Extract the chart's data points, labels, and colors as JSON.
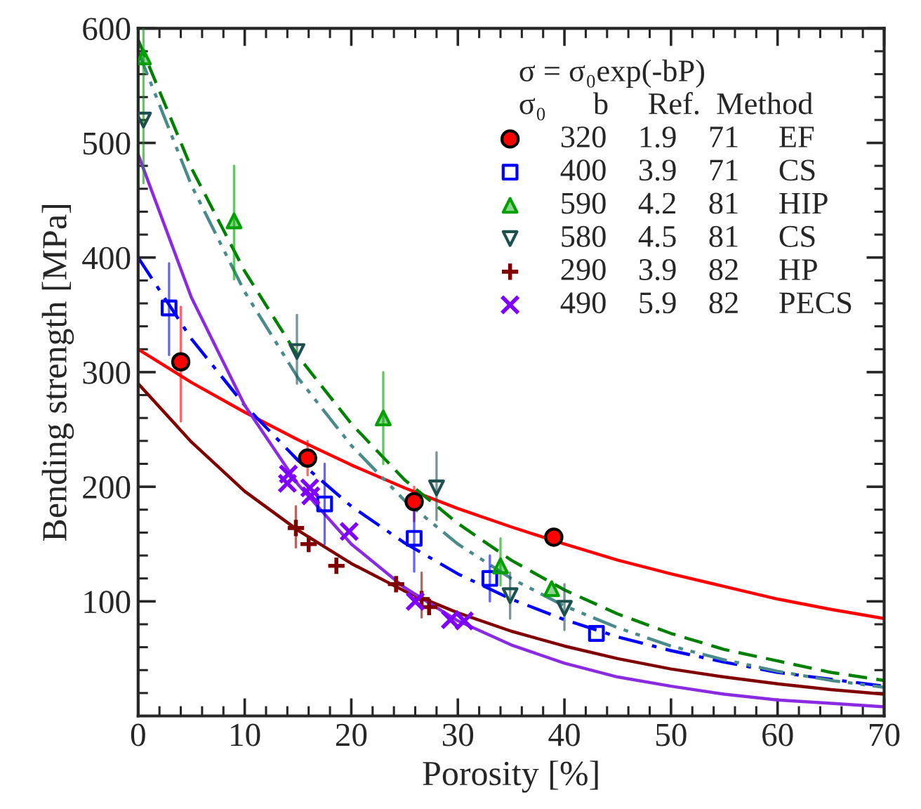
{
  "chart_data": {
    "type": "scatter",
    "xlabel": "Porosity [%]",
    "ylabel": "Bending strength [MPa]",
    "xlim": [
      0,
      70
    ],
    "ylim": [
      0,
      600
    ],
    "xticks": [
      0,
      10,
      20,
      30,
      40,
      50,
      60,
      70
    ],
    "yticks": [
      100,
      200,
      300,
      400,
      500,
      600
    ],
    "grid": false,
    "legend": "top right",
    "legend_title": "σ = σ₀exp(-bP)\nσ₀      b     Ref.  Method",
    "series": [
      {
        "name": "320    1.9    71     EF",
        "marker": "circle",
        "color": "#ff0000",
        "x": [
          4,
          15.9,
          25.9,
          39
        ],
        "values": [
          309,
          225,
          187,
          156
        ],
        "errors": [
          [
            257,
            357
          ],
          [
            210,
            240
          ],
          [
            170,
            200
          ],
          null
        ]
      },
      {
        "name": "400    3.9    71     CS",
        "marker": "square",
        "color": "#0000ff",
        "x": [
          2.9,
          17.5,
          25.9,
          33,
          43
        ],
        "values": [
          356,
          185,
          155,
          120,
          72
        ],
        "errors": [
          [
            315,
            395
          ],
          [
            150,
            220
          ],
          [
            126,
            183
          ],
          [
            100,
            140
          ],
          null
        ]
      },
      {
        "name": "590    4.2    81     HIP",
        "marker": "triangle",
        "color": "#00a000",
        "x": [
          0.5,
          9,
          23,
          34,
          38.8
        ],
        "values": [
          575,
          432,
          260,
          131,
          111
        ],
        "errors": [
          [
            465,
            600
          ],
          [
            381,
            480
          ],
          [
            220,
            300
          ],
          [
            114,
            155
          ],
          null
        ]
      },
      {
        "name": "580    4.5    81     CS",
        "marker": "triangle_down",
        "color": "#1f5050",
        "x": [
          0.5,
          14.9,
          28,
          34.9,
          40
        ],
        "values": [
          520,
          318,
          199,
          105,
          94
        ],
        "errors": [
          null,
          [
            290,
            350
          ],
          [
            171,
            230
          ],
          [
            85,
            125
          ],
          [
            75,
            115
          ]
        ]
      },
      {
        "name": "290    3.9    82     HP",
        "marker": "plus",
        "color": "#800000",
        "x": [
          14.8,
          16,
          18.6,
          24.2,
          26.6,
          27.3
        ],
        "values": [
          164,
          150,
          131,
          115,
          102,
          95
        ],
        "errors": [
          [
            147,
            183
          ],
          null,
          null,
          null,
          [
            86,
            125
          ],
          null
        ]
      },
      {
        "name": "490    5.9    82     PECS",
        "marker": "cross",
        "color": "#8000ff",
        "x": [
          14.1,
          14,
          16.1,
          16.2,
          19.8,
          26,
          29.3,
          30.6
        ],
        "values": [
          211,
          203,
          199,
          192,
          161,
          100,
          84,
          83
        ]
      },
      {
        "type": "line",
        "color": "#ff0000",
        "line_style": "solid",
        "x": [
          0,
          5,
          10,
          15,
          20,
          25,
          30,
          35,
          40,
          45,
          50,
          55,
          60,
          65,
          70
        ],
        "values": [
          320,
          291,
          265,
          241,
          219,
          199,
          181,
          165,
          150,
          136,
          124,
          113,
          102,
          93,
          85
        ]
      },
      {
        "type": "line",
        "color": "#0000ff",
        "line_style": "dashdot",
        "x": [
          0,
          5,
          10,
          15,
          20,
          25,
          30,
          35,
          40,
          45,
          50,
          55,
          60,
          65,
          70
        ],
        "values": [
          400,
          329,
          271,
          223,
          183,
          151,
          124,
          102,
          84,
          69,
          57,
          47,
          38,
          32,
          26
        ]
      },
      {
        "type": "line",
        "color": "#008000",
        "line_style": "dashed",
        "x": [
          0,
          5,
          10,
          15,
          20,
          25,
          30,
          35,
          40,
          45,
          50,
          55,
          60,
          65,
          70
        ],
        "values": [
          590,
          478,
          388,
          314,
          255,
          206,
          168,
          136,
          110,
          89,
          72,
          58,
          48,
          38,
          31
        ]
      },
      {
        "type": "line",
        "color": "#4a8a8a",
        "line_style": "dashdotdot",
        "x": [
          0,
          5,
          10,
          15,
          20,
          25,
          30,
          35,
          40,
          45,
          50,
          55,
          60,
          65,
          70
        ],
        "values": [
          580,
          463,
          370,
          295,
          236,
          188,
          150,
          120,
          96,
          77,
          61,
          49,
          39,
          31,
          25
        ]
      },
      {
        "type": "line",
        "color": "#800000",
        "line_style": "solid",
        "x": [
          0,
          5,
          10,
          15,
          20,
          25,
          30,
          35,
          40,
          45,
          50,
          55,
          60,
          65,
          70
        ],
        "values": [
          290,
          239,
          196,
          162,
          133,
          109,
          90,
          74,
          61,
          50,
          41,
          34,
          28,
          23,
          19
        ]
      },
      {
        "type": "line",
        "color": "#8a2be2",
        "line_style": "solid",
        "x": [
          0,
          5,
          10,
          15,
          20,
          25,
          30,
          35,
          40,
          45,
          50,
          55,
          60,
          65,
          70
        ],
        "values": [
          490,
          365,
          271,
          202,
          150,
          112,
          83,
          62,
          46,
          34,
          26,
          19,
          14,
          11,
          8
        ]
      }
    ]
  }
}
